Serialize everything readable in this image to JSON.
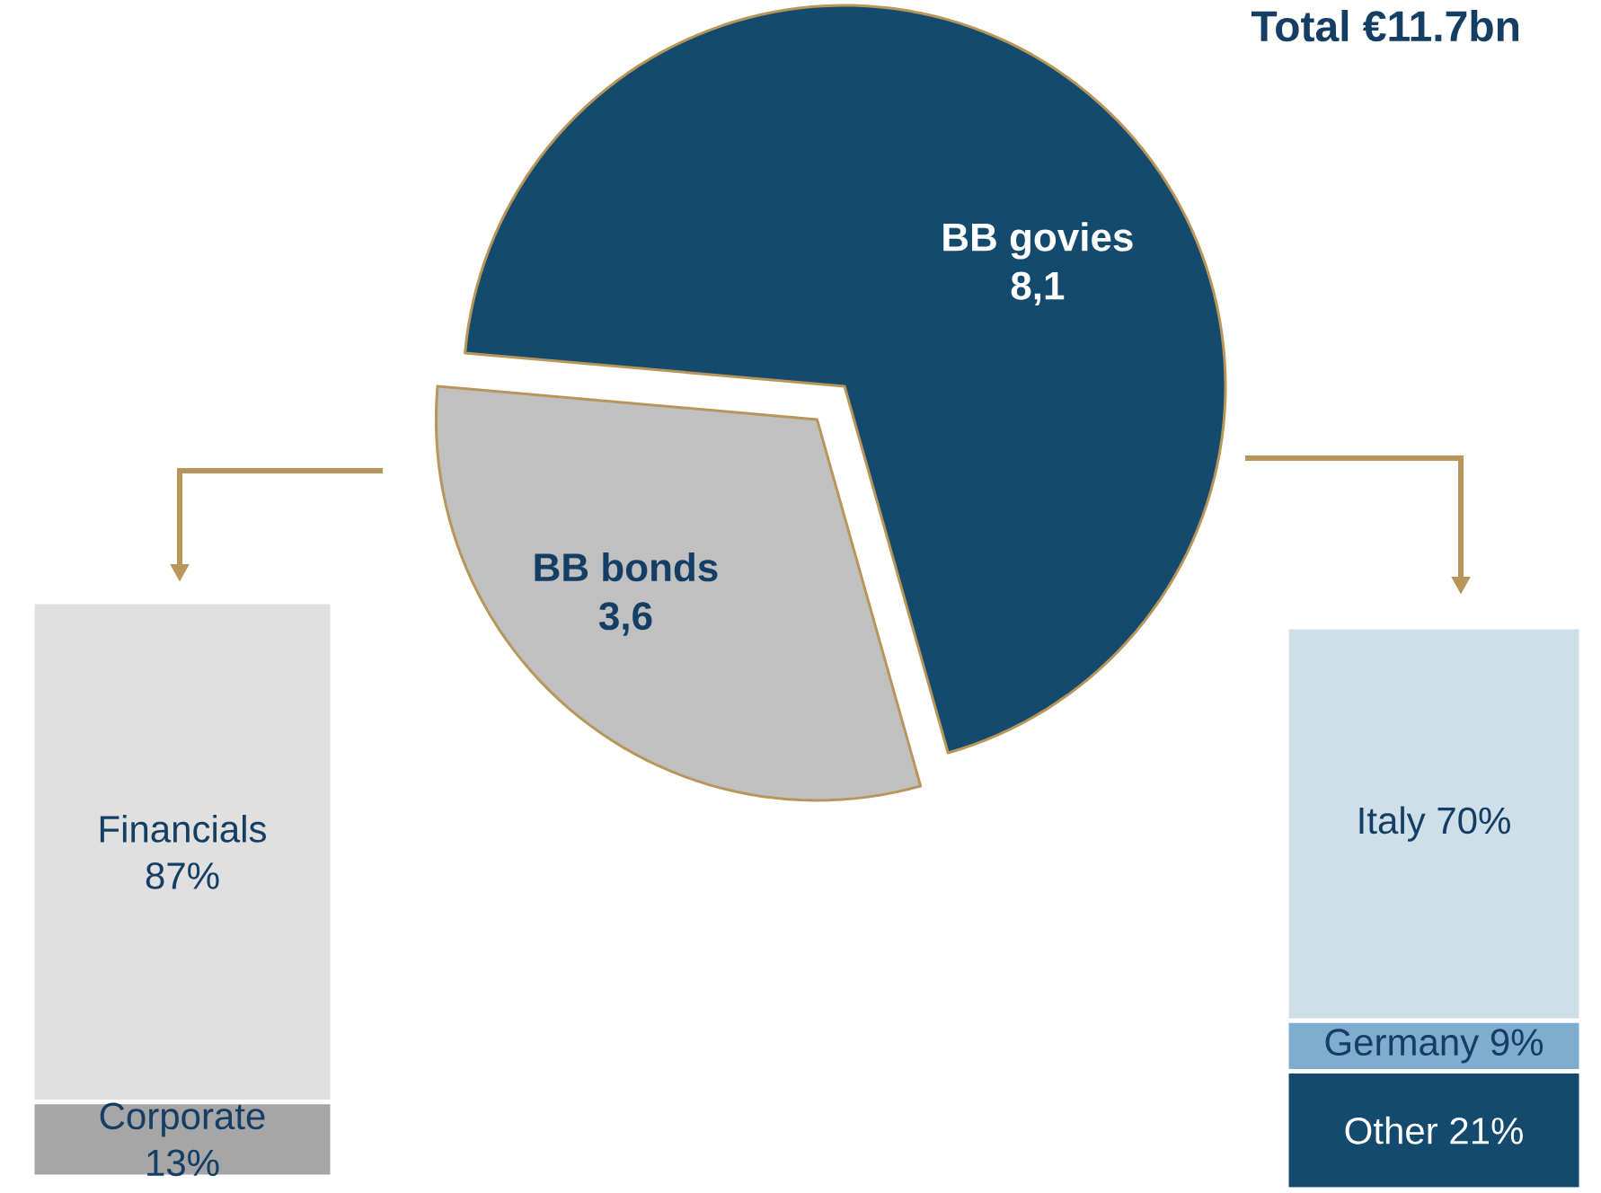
{
  "chart_data": [
    {
      "type": "pie",
      "title": "Total €11.7bn",
      "categories": [
        "BB govies",
        "BB bonds"
      ],
      "values": [
        8.1,
        3.6
      ],
      "value_labels": [
        "8,1",
        "3,6"
      ],
      "colors": [
        "#134a6e",
        "#c0c0c0"
      ]
    },
    {
      "type": "bar",
      "stacked": true,
      "categories": [
        null
      ],
      "series": [
        {
          "name": "Corporate",
          "color": "#a6a6a6",
          "values": [
            13
          ],
          "value_labels": [
            "13%"
          ]
        },
        {
          "name": "Financials",
          "color": "#e0e0e0",
          "values": [
            87
          ],
          "value_labels": [
            "87%"
          ]
        }
      ]
    },
    {
      "type": "bar",
      "stacked": true,
      "categories": [
        null
      ],
      "series": [
        {
          "name": "Other",
          "color": "#134a6e",
          "values": [
            21
          ],
          "value_labels": [
            "21%"
          ]
        },
        {
          "name": "Germany",
          "color": "#7fadd0",
          "values": [
            9
          ],
          "value_labels": [
            "9%"
          ]
        },
        {
          "name": "Italy",
          "color": "#cfdfea",
          "values": [
            70
          ],
          "value_labels": [
            "70%"
          ]
        }
      ]
    }
  ]
}
